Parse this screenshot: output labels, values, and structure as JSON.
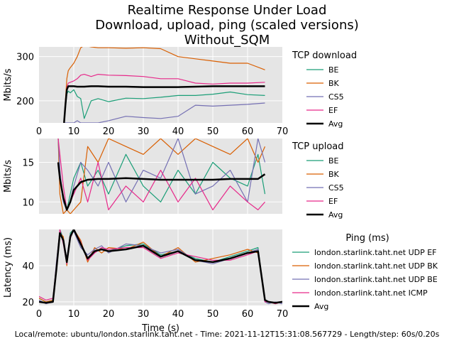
{
  "title": [
    "Realtime Response Under Load",
    "Download, upload, ping (scaled versions)",
    "Without_SQM"
  ],
  "footer": "Local/remote: ubuntu/london.starlink.taht.net - Time: 2021-11-12T15:31:08.567729 - Length/step: 60s/0.20s",
  "colors": {
    "BE": "#1b9e77",
    "BK": "#d95f02",
    "CS5": "#7570b3",
    "EF": "#e7298a",
    "Avg": "#000000",
    "plot_bg": "#e5e5e5",
    "grid": "#ffffff"
  },
  "chart_data": [
    {
      "id": "download",
      "type": "line",
      "ylabel": "Mbits/s",
      "xlim": [
        0,
        70
      ],
      "ylim": [
        150,
        322
      ],
      "xticks": [
        "0",
        "10",
        "20",
        "30",
        "40",
        "50",
        "60",
        "70"
      ],
      "yticks": [
        200,
        300
      ],
      "legend_title": "TCP download",
      "legend": [
        "BE",
        "BK",
        "CS5",
        "EF",
        "Avg"
      ],
      "x": [
        7.2,
        7.6,
        8.0,
        8.4,
        9,
        10,
        11,
        12,
        13,
        15,
        17,
        20,
        25,
        30,
        35,
        40,
        45,
        50,
        55,
        60,
        65
      ],
      "series": [
        {
          "name": "BE",
          "color": "#1b9e77",
          "values": [
            150,
            185,
            215,
            222,
            218,
            225,
            210,
            205,
            160,
            200,
            205,
            198,
            206,
            205,
            208,
            212,
            212,
            215,
            220,
            214,
            212
          ]
        },
        {
          "name": "BK",
          "color": "#d95f02",
          "values": [
            150,
            200,
            250,
            268,
            275,
            285,
            300,
            320,
            325,
            322,
            320,
            320,
            319,
            320,
            318,
            300,
            295,
            290,
            285,
            285,
            270
          ]
        },
        {
          "name": "CS5",
          "color": "#7570b3",
          "values": [
            150,
            150,
            150,
            150,
            150,
            150,
            155,
            150,
            150,
            150,
            150,
            155,
            165,
            162,
            160,
            165,
            190,
            188,
            190,
            192,
            195
          ]
        },
        {
          "name": "EF",
          "color": "#e7298a",
          "values": [
            150,
            190,
            230,
            240,
            242,
            245,
            250,
            258,
            260,
            255,
            260,
            258,
            257,
            255,
            250,
            250,
            240,
            238,
            240,
            240,
            242
          ]
        },
        {
          "name": "Avg",
          "color": "#000000",
          "values": [
            150,
            190,
            225,
            233,
            233,
            233,
            232,
            232,
            232,
            233,
            233,
            232,
            232,
            231,
            231,
            231,
            232,
            233,
            233,
            233,
            233
          ]
        }
      ]
    },
    {
      "id": "upload",
      "type": "line",
      "ylabel": "Mbits/s",
      "xlim": [
        0,
        70
      ],
      "ylim": [
        8.5,
        18
      ],
      "xticks": [],
      "yticks": [
        10,
        15
      ],
      "legend_title": "TCP upload",
      "legend": [
        "BE",
        "BK",
        "CS5",
        "EF",
        "Avg"
      ],
      "x": [
        5.5,
        6,
        7,
        8,
        9,
        10,
        12,
        14,
        17,
        20,
        25,
        30,
        35,
        40,
        45,
        50,
        55,
        60,
        63,
        65
      ],
      "series": [
        {
          "name": "BE",
          "color": "#1b9e77",
          "values": [
            18,
            13,
            10,
            9,
            11,
            13,
            15,
            12,
            14,
            11,
            16,
            12,
            10,
            14,
            11,
            15,
            13,
            12,
            16,
            11
          ]
        },
        {
          "name": "BK",
          "color": "#d95f02",
          "values": [
            18,
            11,
            8.5,
            9,
            8.5,
            9,
            10,
            17,
            15,
            18,
            17,
            16,
            18,
            16,
            18,
            17,
            16,
            18,
            15,
            17
          ]
        },
        {
          "name": "CS5",
          "color": "#7570b3",
          "values": [
            18,
            14,
            10,
            9,
            10,
            12,
            15,
            14,
            12,
            15,
            10,
            14,
            13,
            18,
            11,
            12,
            14,
            10,
            18,
            15
          ]
        },
        {
          "name": "EF",
          "color": "#e7298a",
          "values": [
            18,
            16,
            12,
            9,
            10,
            11,
            13,
            10,
            15,
            9,
            12,
            10,
            14,
            10,
            13,
            9,
            12,
            10,
            9,
            10
          ]
        },
        {
          "name": "Avg",
          "color": "#000000",
          "values": [
            15,
            13,
            10.5,
            9,
            10,
            11.5,
            12.5,
            12.8,
            12.9,
            12.9,
            13.0,
            12.9,
            12.8,
            12.8,
            12.8,
            12.8,
            12.9,
            12.9,
            12.9,
            13.5
          ]
        }
      ]
    },
    {
      "id": "ping",
      "type": "line",
      "ylabel": "Latency (ms)",
      "xlabel": "Time (s)",
      "xlim": [
        0,
        70
      ],
      "ylim": [
        18,
        60
      ],
      "xticks": [
        "0",
        "10",
        "20",
        "30",
        "40",
        "50",
        "60",
        "70"
      ],
      "yticks": [
        20,
        40
      ],
      "legend_title": "Ping (ms)",
      "legend": [
        "london.starlink.taht.net UDP EF",
        "london.starlink.taht.net UDP BK",
        "london.starlink.taht.net UDP BE",
        "london.starlink.taht.net ICMP",
        "Avg"
      ],
      "x": [
        0,
        2,
        4,
        5,
        6,
        7,
        8,
        9,
        10,
        12,
        14,
        16,
        18,
        20,
        25,
        30,
        35,
        40,
        45,
        50,
        55,
        60,
        63,
        65,
        66,
        68,
        70
      ],
      "series": [
        {
          "name": "london.starlink.taht.net UDP EF",
          "color": "#1b9e77",
          "values": [
            22,
            20,
            21,
            40,
            60,
            55,
            42,
            58,
            60,
            52,
            44,
            48,
            49,
            48,
            51,
            52,
            46,
            48,
            44,
            42,
            45,
            48,
            50,
            20,
            20,
            19,
            20
          ]
        },
        {
          "name": "london.starlink.taht.net UDP BK",
          "color": "#d95f02",
          "values": [
            22,
            20,
            21,
            38,
            58,
            56,
            40,
            56,
            60,
            54,
            42,
            50,
            47,
            50,
            49,
            53,
            45,
            50,
            42,
            44,
            46,
            49,
            47,
            21,
            20,
            19,
            20
          ]
        },
        {
          "name": "london.starlink.taht.net UDP BE",
          "color": "#7570b3",
          "values": [
            21,
            19,
            20,
            42,
            59,
            54,
            44,
            57,
            59,
            50,
            46,
            49,
            51,
            47,
            52,
            51,
            47,
            49,
            43,
            41,
            44,
            47,
            49,
            20,
            19,
            20,
            19
          ]
        },
        {
          "name": "london.starlink.taht.net ICMP",
          "color": "#e7298a",
          "values": [
            23,
            21,
            22,
            40,
            60,
            52,
            41,
            55,
            60,
            53,
            43,
            47,
            50,
            49,
            50,
            50,
            44,
            47,
            45,
            43,
            43,
            46,
            48,
            20,
            20,
            19,
            20
          ]
        },
        {
          "name": "Avg",
          "color": "#000000",
          "values": [
            20,
            19.5,
            20,
            38,
            58,
            54,
            42,
            56,
            60,
            52,
            44,
            48,
            49,
            48,
            49,
            51,
            45,
            48,
            43,
            42,
            44,
            47,
            48,
            21,
            20,
            19.5,
            20
          ]
        }
      ]
    }
  ]
}
